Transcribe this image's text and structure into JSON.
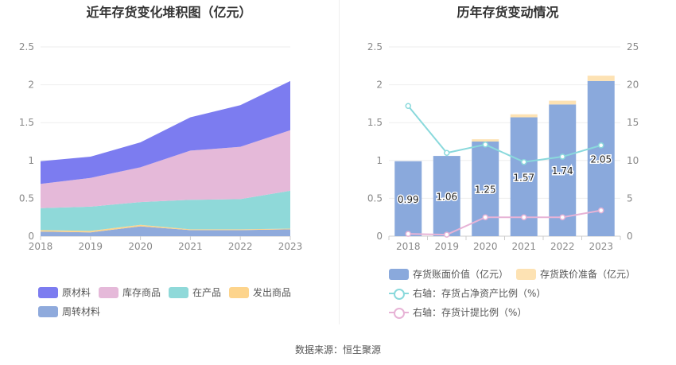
{
  "left": {
    "title": "近年存货变化堆积图（亿元）",
    "legend": [
      "原材料",
      "库存商品",
      "在产品",
      "发出商品",
      "周转材料"
    ]
  },
  "right": {
    "title": "历年存货变动情况",
    "legend": [
      "存货账面价值（亿元）",
      "存货跌价准备（亿元）",
      "右轴：存货占净资产比例（%）",
      "右轴：存货计提比例（%）"
    ]
  },
  "source": "数据来源：恒生聚源",
  "chart_data": [
    {
      "type": "area",
      "title": "近年存货变化堆积图（亿元）",
      "x": [
        "2018",
        "2019",
        "2020",
        "2021",
        "2022",
        "2023"
      ],
      "ylim": [
        0,
        2.5
      ],
      "yticks": [
        "0",
        "0.5",
        "1",
        "1.5",
        "2",
        "2.5"
      ],
      "stacked": true,
      "series": [
        {
          "name": "周转材料",
          "color": "#8faadc",
          "values": [
            0.06,
            0.05,
            0.13,
            0.08,
            0.08,
            0.09
          ]
        },
        {
          "name": "发出商品",
          "color": "#fdd48c",
          "values": [
            0.02,
            0.02,
            0.02,
            0.01,
            0.01,
            0.01
          ]
        },
        {
          "name": "在产品",
          "color": "#8fd9d9",
          "values": [
            0.29,
            0.32,
            0.3,
            0.39,
            0.4,
            0.5
          ]
        },
        {
          "name": "库存商品",
          "color": "#e5b9d9",
          "values": [
            0.32,
            0.38,
            0.46,
            0.65,
            0.69,
            0.8
          ]
        },
        {
          "name": "原材料",
          "color": "#7c7cf0",
          "values": [
            0.3,
            0.28,
            0.33,
            0.44,
            0.55,
            0.65
          ]
        }
      ],
      "legend_position": "bottom",
      "grid": true
    },
    {
      "type": "bar",
      "title": "历年存货变动情况",
      "categories": [
        "2018",
        "2019",
        "2020",
        "2021",
        "2022",
        "2023"
      ],
      "ylim": [
        0,
        2.5
      ],
      "yticks": [
        "0",
        "0.5",
        "1",
        "1.5",
        "2",
        "2.5"
      ],
      "y2lim": [
        0,
        25
      ],
      "y2ticks": [
        "0",
        "5",
        "10",
        "15",
        "20",
        "25"
      ],
      "series": [
        {
          "name": "存货账面价值（亿元）",
          "kind": "bar",
          "axis": "left",
          "color": "#8aa9dc",
          "values": [
            0.99,
            1.06,
            1.25,
            1.57,
            1.74,
            2.05
          ],
          "labels": [
            "0.99",
            "1.06",
            "1.25",
            "1.57",
            "1.74",
            "2.05"
          ]
        },
        {
          "name": "存货跌价准备（亿元）",
          "kind": "bar-stacked",
          "axis": "left",
          "color": "#fde2b3",
          "values": [
            0.0,
            0.0,
            0.03,
            0.04,
            0.05,
            0.07
          ]
        },
        {
          "name": "右轴：存货占净资产比例（%）",
          "kind": "line",
          "axis": "right",
          "color": "#8ad9dc",
          "values": [
            17.2,
            11.0,
            12.1,
            9.8,
            10.5,
            12.0
          ]
        },
        {
          "name": "右轴：存货计提比例（%）",
          "kind": "line",
          "axis": "right",
          "color": "#e7b3d6",
          "values": [
            0.3,
            0.2,
            2.5,
            2.5,
            2.5,
            3.4
          ]
        }
      ],
      "legend_position": "bottom",
      "grid": true
    }
  ]
}
